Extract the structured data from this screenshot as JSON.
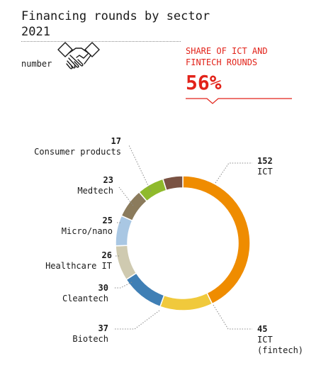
{
  "header": {
    "title_line1": "Financing rounds by sector",
    "title_line2": "2021",
    "unit": "number"
  },
  "kpi": {
    "label_line1": "SHARE OF ICT AND",
    "label_line2": "FINTECH ROUNDS",
    "value": "56%",
    "color": "#e2231a"
  },
  "icons": {
    "header_icon": "handshake-icon"
  },
  "chart_data": {
    "type": "pie",
    "donut": true,
    "title": "Financing rounds by sector 2021",
    "unit": "number",
    "categories": [
      "ICT",
      "ICT (fintech)",
      "Biotech",
      "Cleantech",
      "Healthcare IT",
      "Micro/nano",
      "Medtech",
      "Consumer products"
    ],
    "values": [
      152,
      45,
      37,
      30,
      26,
      25,
      23,
      17
    ],
    "colors": [
      "#ef8c00",
      "#f0c93c",
      "#3f7fb5",
      "#cfcab0",
      "#a9c7e3",
      "#8b7b5c",
      "#8fba2c",
      "#7a5243"
    ],
    "labels": [
      {
        "value": "152",
        "name": [
          "ICT"
        ]
      },
      {
        "value": "45",
        "name": [
          "ICT",
          "(fintech)"
        ]
      },
      {
        "value": "37",
        "name": [
          "Biotech"
        ]
      },
      {
        "value": "30",
        "name": [
          "Cleantech"
        ]
      },
      {
        "value": "26",
        "name": [
          "Healthcare IT"
        ]
      },
      {
        "value": "25",
        "name": [
          "Micro/nano"
        ]
      },
      {
        "value": "23",
        "name": [
          "Medtech"
        ]
      },
      {
        "value": "17",
        "name": [
          "Consumer products"
        ]
      }
    ]
  }
}
